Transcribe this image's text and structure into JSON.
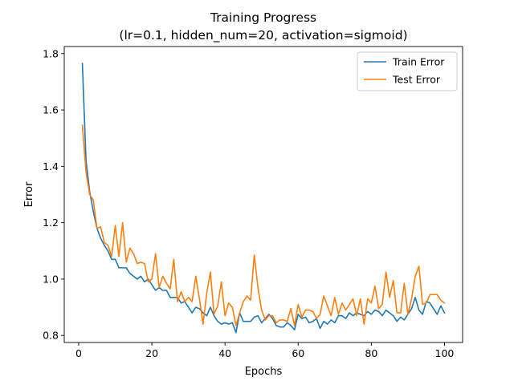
{
  "chart_data": {
    "type": "line",
    "title": "Training Progress",
    "subtitle": "(lr=0.1, hidden_num=20, activation=sigmoid)",
    "xlabel": "Epochs",
    "ylabel": "Error",
    "xlim": [
      -3.95,
      104.95
    ],
    "ylim": [
      0.775,
      1.825
    ],
    "xticks": [
      0,
      20,
      40,
      60,
      80,
      100
    ],
    "yticks": [
      0.8,
      1.0,
      1.2,
      1.4,
      1.6,
      1.8
    ],
    "xtick_labels": [
      "0",
      "20",
      "40",
      "60",
      "80",
      "100"
    ],
    "ytick_labels": [
      "0.8",
      "1.0",
      "1.2",
      "1.4",
      "1.6",
      "1.8"
    ],
    "grid": false,
    "legend_position": "top-right",
    "x": [
      1,
      2,
      3,
      4,
      5,
      6,
      7,
      8,
      9,
      10,
      11,
      12,
      13,
      14,
      15,
      16,
      17,
      18,
      19,
      20,
      21,
      22,
      23,
      24,
      25,
      26,
      27,
      28,
      29,
      30,
      31,
      32,
      33,
      34,
      35,
      36,
      37,
      38,
      39,
      40,
      41,
      42,
      43,
      44,
      45,
      46,
      47,
      48,
      49,
      50,
      51,
      52,
      53,
      54,
      55,
      56,
      57,
      58,
      59,
      60,
      61,
      62,
      63,
      64,
      65,
      66,
      67,
      68,
      69,
      70,
      71,
      72,
      73,
      74,
      75,
      76,
      77,
      78,
      79,
      80,
      81,
      82,
      83,
      84,
      85,
      86,
      87,
      88,
      89,
      90,
      91,
      92,
      93,
      94,
      95,
      96,
      97,
      98,
      99,
      100
    ],
    "series": [
      {
        "name": "Train Error",
        "color": "#1f77b4",
        "values": [
          1.765,
          1.42,
          1.31,
          1.24,
          1.18,
          1.145,
          1.12,
          1.1,
          1.07,
          1.07,
          1.04,
          1.04,
          1.04,
          1.02,
          1.01,
          1.0,
          1.01,
          0.99,
          1.0,
          0.98,
          0.96,
          0.97,
          0.96,
          0.96,
          0.935,
          0.935,
          0.935,
          0.915,
          0.92,
          0.9,
          0.88,
          0.9,
          0.895,
          0.88,
          0.87,
          0.9,
          0.87,
          0.85,
          0.84,
          0.845,
          0.84,
          0.845,
          0.81,
          0.88,
          0.85,
          0.85,
          0.85,
          0.865,
          0.87,
          0.845,
          0.86,
          0.875,
          0.86,
          0.835,
          0.83,
          0.83,
          0.845,
          0.835,
          0.82,
          0.875,
          0.86,
          0.865,
          0.845,
          0.85,
          0.86,
          0.825,
          0.85,
          0.84,
          0.855,
          0.845,
          0.87,
          0.87,
          0.86,
          0.88,
          0.87,
          0.88,
          0.875,
          0.87,
          0.885,
          0.875,
          0.89,
          0.885,
          0.87,
          0.89,
          0.88,
          0.87,
          0.85,
          0.865,
          0.855,
          0.875,
          0.895,
          0.935,
          0.89,
          0.875,
          0.92,
          0.915,
          0.895,
          0.875,
          0.905,
          0.88
        ]
      },
      {
        "name": "Test Error",
        "color": "#ff7f0e",
        "values": [
          1.545,
          1.38,
          1.3,
          1.28,
          1.18,
          1.185,
          1.13,
          1.12,
          1.08,
          1.19,
          1.08,
          1.2,
          1.06,
          1.11,
          1.09,
          1.055,
          1.06,
          1.055,
          0.99,
          1.0,
          1.09,
          0.97,
          1.01,
          0.985,
          0.965,
          1.07,
          0.92,
          0.955,
          0.92,
          0.935,
          0.92,
          1.01,
          0.93,
          0.84,
          0.95,
          1.025,
          0.875,
          0.905,
          0.99,
          0.87,
          0.915,
          0.9,
          0.835,
          0.88,
          0.92,
          0.94,
          0.925,
          1.085,
          0.97,
          0.89,
          0.855,
          0.87,
          0.87,
          0.845,
          0.855,
          0.855,
          0.85,
          0.895,
          0.835,
          0.91,
          0.865,
          0.89,
          0.89,
          0.885,
          0.86,
          0.875,
          0.94,
          0.905,
          0.87,
          0.935,
          0.875,
          0.915,
          0.89,
          0.91,
          0.93,
          0.87,
          0.93,
          0.84,
          0.93,
          0.915,
          0.975,
          0.895,
          0.91,
          1.025,
          0.935,
          0.995,
          0.88,
          0.88,
          0.985,
          0.875,
          0.93,
          1.01,
          1.045,
          0.91,
          0.915,
          0.945,
          0.945,
          0.945,
          0.925,
          0.915
        ]
      }
    ]
  }
}
